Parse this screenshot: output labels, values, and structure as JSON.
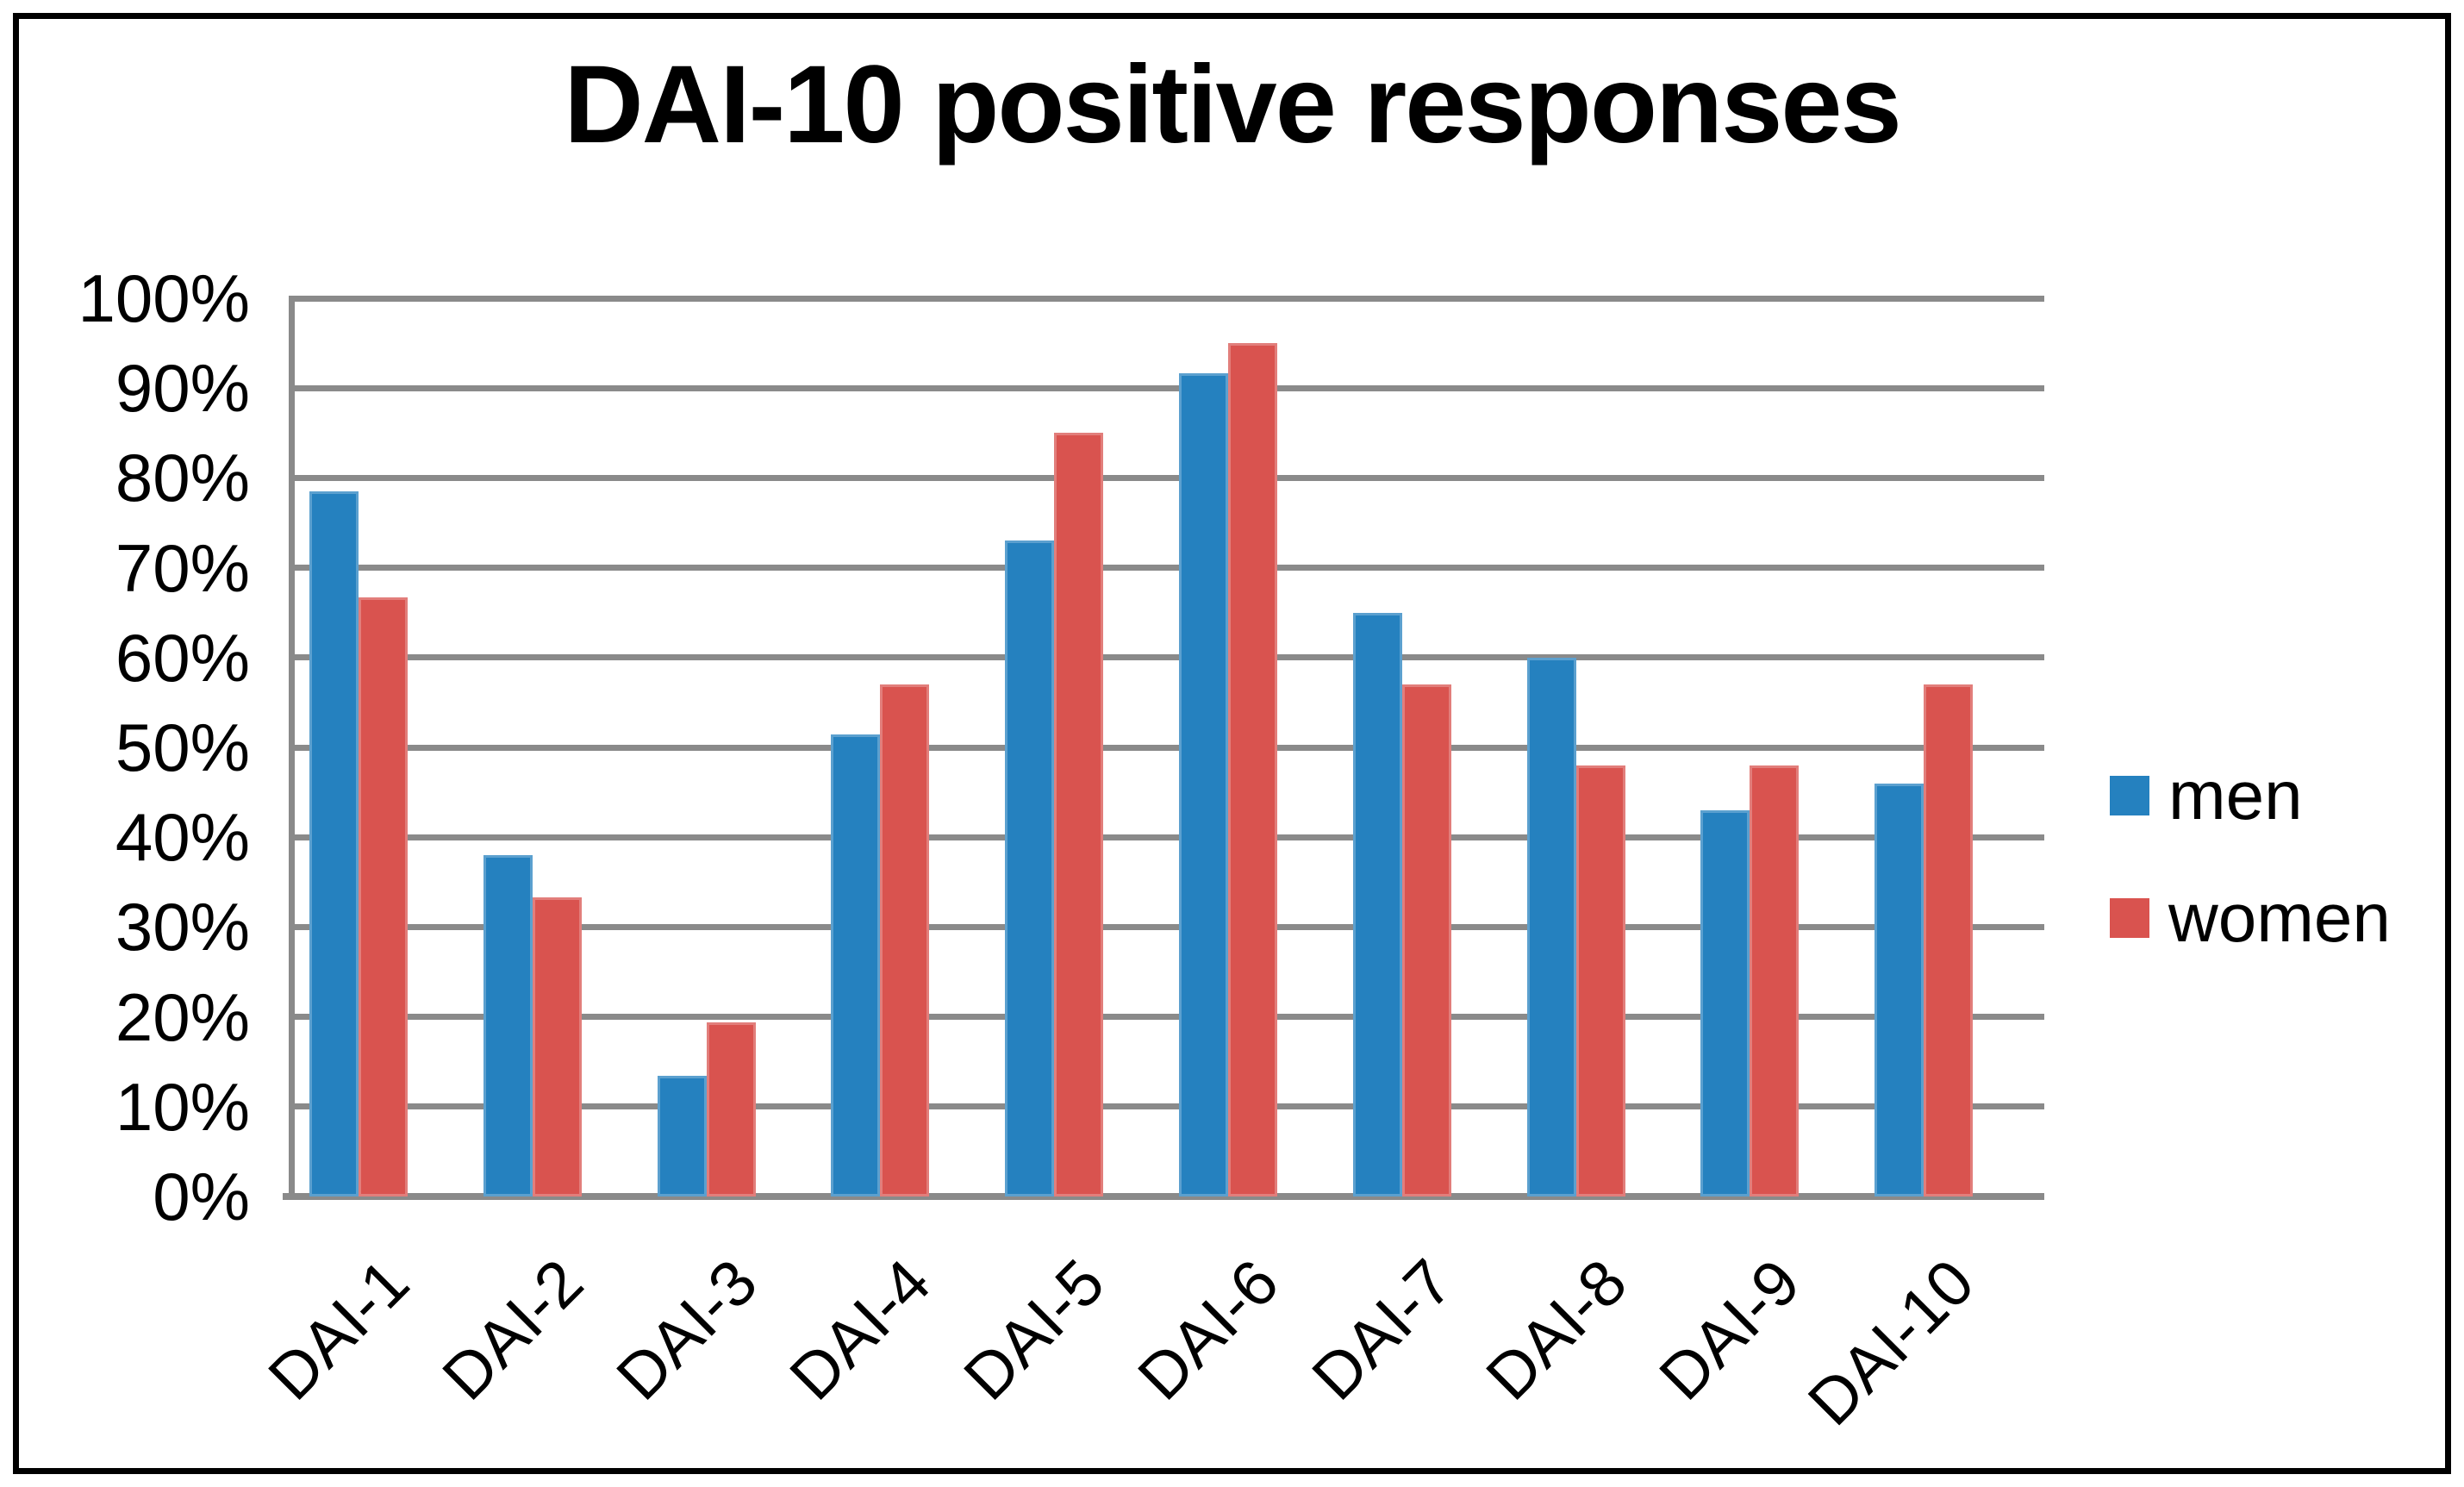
{
  "chart_data": {
    "type": "bar",
    "title": "DAI-10 positive responses",
    "categories": [
      "DAI-1",
      "DAI-2",
      "DAI-3",
      "DAI-4",
      "DAI-5",
      "DAI-6",
      "DAI-7",
      "DAI-8",
      "DAI-9",
      "DAI-10"
    ],
    "series": [
      {
        "name": "men",
        "color": "#2581BF",
        "values": [
          78.5,
          38.0,
          13.4,
          51.4,
          73.0,
          91.7,
          65.0,
          60.0,
          43.0,
          46.0
        ]
      },
      {
        "name": "women",
        "color": "#D9534F",
        "values": [
          66.7,
          33.3,
          19.4,
          57.0,
          85.0,
          95.0,
          57.0,
          48.0,
          48.0,
          57.0
        ]
      }
    ],
    "ylabel": "",
    "xlabel": "",
    "ylim": [
      0,
      100
    ],
    "yticks": [
      0,
      10,
      20,
      30,
      40,
      50,
      60,
      70,
      80,
      90,
      100
    ],
    "ytick_format": "percent",
    "grid": "horizontal",
    "gridline_color": "#8A8A8A",
    "axis_color": "#8A8A8A",
    "frame_color": "#000000",
    "background_color": "#FFFFFF",
    "legend_position": "right",
    "legend": [
      "men",
      "women"
    ]
  }
}
